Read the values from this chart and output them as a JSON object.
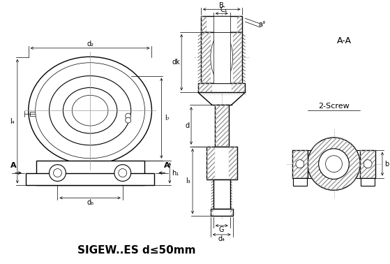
{
  "title": "SIGEW..ES d≤50mm",
  "bg_color": "#ffffff",
  "line_color": "#000000",
  "title_fontsize": 11,
  "fig_width": 5.59,
  "fig_height": 3.78,
  "labels": {
    "d2": "d₂",
    "d6": "d₆",
    "d4": "d₄",
    "dk": "dk",
    "d": "d",
    "l4": "l₄",
    "l7": "l₇",
    "l3": "l₃",
    "h1": "h₁",
    "B": "B",
    "C1": "C₁",
    "G": "G",
    "aa": "a°",
    "A_A": "A-A",
    "two_screw": "2-Screw",
    "b": "b"
  }
}
